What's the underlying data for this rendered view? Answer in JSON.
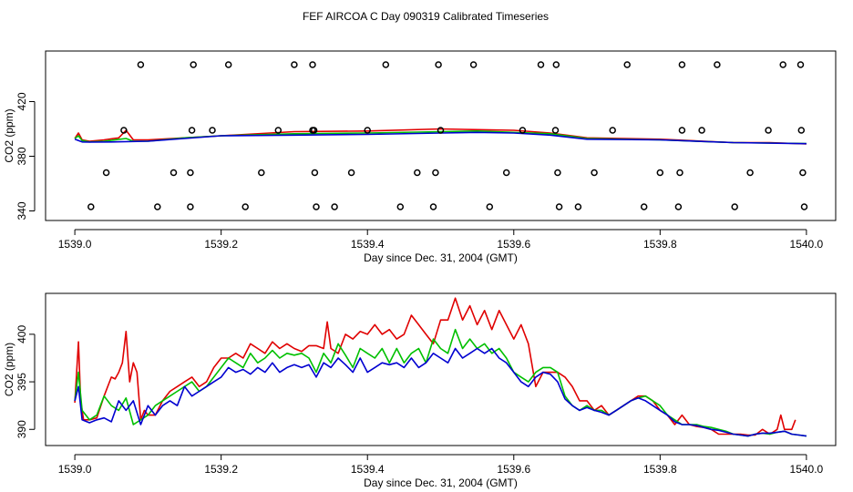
{
  "title": "FEF AIRCOA C  Day 090319  Calibrated Timeseries",
  "colors": {
    "red": "#e00000",
    "green": "#00c000",
    "blue": "#0000d0",
    "axis": "#000000"
  },
  "chart_data": [
    {
      "type": "line",
      "panel": "top",
      "xlabel": "Day since Dec. 31, 2004 (GMT)",
      "ylabel": "CO2 (ppm)",
      "xlim": [
        1538.96,
        1540.04
      ],
      "ylim": [
        333,
        457
      ],
      "xticks": [
        1539.0,
        1539.2,
        1539.4,
        1539.6,
        1539.8,
        1540.0
      ],
      "xtick_labels": [
        "1539.0",
        "1539.2",
        "1539.4",
        "1539.6",
        "1539.8",
        "1540.0"
      ],
      "yticks": [
        340,
        380,
        420
      ],
      "ytick_labels": [
        "340",
        "380",
        "420"
      ],
      "series": [
        {
          "name": "red",
          "color": "#e00000",
          "x": [
            1539.0,
            1539.005,
            1539.01,
            1539.02,
            1539.04,
            1539.06,
            1539.07,
            1539.08,
            1539.1,
            1539.15,
            1539.2,
            1539.3,
            1539.4,
            1539.5,
            1539.55,
            1539.6,
            1539.65,
            1539.7,
            1539.8,
            1539.9,
            1539.95,
            1540.0
          ],
          "y": [
            393,
            397,
            392,
            391,
            392,
            393.5,
            399,
            392,
            392,
            393.5,
            395,
            398,
            398.5,
            400,
            399.5,
            399,
            397,
            393.5,
            392.5,
            390,
            390,
            389
          ]
        },
        {
          "name": "green",
          "color": "#00c000",
          "x": [
            1539.0,
            1539.005,
            1539.01,
            1539.02,
            1539.04,
            1539.07,
            1539.08,
            1539.1,
            1539.15,
            1539.2,
            1539.3,
            1539.4,
            1539.5,
            1539.55,
            1539.6,
            1539.65,
            1539.7,
            1539.8,
            1539.9,
            1540.0
          ],
          "y": [
            393,
            395,
            391.5,
            390.5,
            391,
            393,
            391,
            391,
            393.5,
            395,
            396.5,
            397,
            398,
            398.5,
            397.5,
            396.5,
            393,
            392,
            390,
            389.3
          ]
        },
        {
          "name": "blue",
          "color": "#0000d0",
          "x": [
            1539.0,
            1539.01,
            1539.02,
            1539.05,
            1539.1,
            1539.15,
            1539.2,
            1539.3,
            1539.4,
            1539.5,
            1539.55,
            1539.6,
            1539.65,
            1539.7,
            1539.8,
            1539.9,
            1540.0
          ],
          "y": [
            392.5,
            390.5,
            390.3,
            390.5,
            391,
            393,
            395,
            395.5,
            396,
            397,
            397.5,
            397,
            395.5,
            392.5,
            392,
            390,
            389.2
          ]
        }
      ],
      "markers": [
        {
          "name": "circles",
          "color": "#000000",
          "x": [
            1539.09,
            1539.162,
            1539.21,
            1539.3,
            1539.325,
            1539.425,
            1539.497,
            1539.545,
            1539.637,
            1539.658,
            1539.755,
            1539.83,
            1539.878,
            1539.968,
            1539.992,
            1539.067,
            1539.16,
            1539.188,
            1539.278,
            1539.325,
            1539.327,
            1539.4,
            1539.5,
            1539.612,
            1539.657,
            1539.735,
            1539.83,
            1539.857,
            1539.948,
            1539.993,
            1539.043,
            1539.135,
            1539.158,
            1539.255,
            1539.328,
            1539.378,
            1539.468,
            1539.493,
            1539.59,
            1539.66,
            1539.71,
            1539.8,
            1539.827,
            1539.923,
            1539.995,
            1539.022,
            1539.113,
            1539.158,
            1539.233,
            1539.33,
            1539.355,
            1539.445,
            1539.49,
            1539.567,
            1539.662,
            1539.688,
            1539.778,
            1539.825,
            1539.902,
            1539.997
          ],
          "y": [
            447,
            447,
            447,
            447,
            447,
            447,
            447,
            447,
            447,
            447,
            447,
            447,
            447,
            447,
            447,
            399,
            399,
            399,
            399,
            399,
            399,
            399,
            399,
            399,
            399,
            399,
            399,
            399,
            399,
            399,
            368,
            368,
            368,
            368,
            368,
            368,
            368,
            368,
            368,
            368,
            368,
            368,
            368,
            368,
            368,
            343,
            343,
            343,
            343,
            343,
            343,
            343,
            343,
            343,
            343,
            343,
            343,
            343,
            343,
            343
          ]
        }
      ]
    },
    {
      "type": "line",
      "panel": "bottom",
      "xlabel": "Day since Dec. 31, 2004 (GMT)",
      "ylabel": "CO2 (ppm)",
      "xlim": [
        1538.96,
        1540.04
      ],
      "ylim": [
        388.3,
        404.3
      ],
      "xticks": [
        1539.0,
        1539.2,
        1539.4,
        1539.6,
        1539.8,
        1540.0
      ],
      "xtick_labels": [
        "1539.0",
        "1539.2",
        "1539.4",
        "1539.6",
        "1539.8",
        "1540.0"
      ],
      "yticks": [
        390,
        395,
        400
      ],
      "ytick_labels": [
        "390",
        "395",
        "400"
      ],
      "series": [
        {
          "name": "red",
          "color": "#e00000",
          "x": [
            1539.0,
            1539.005,
            1539.008,
            1539.012,
            1539.02,
            1539.03,
            1539.04,
            1539.05,
            1539.055,
            1539.06,
            1539.065,
            1539.07,
            1539.075,
            1539.08,
            1539.085,
            1539.09,
            1539.095,
            1539.1,
            1539.11,
            1539.12,
            1539.13,
            1539.14,
            1539.15,
            1539.16,
            1539.17,
            1539.18,
            1539.19,
            1539.2,
            1539.21,
            1539.22,
            1539.23,
            1539.24,
            1539.25,
            1539.26,
            1539.27,
            1539.28,
            1539.29,
            1539.3,
            1539.31,
            1539.32,
            1539.33,
            1539.34,
            1539.345,
            1539.35,
            1539.36,
            1539.37,
            1539.38,
            1539.39,
            1539.4,
            1539.41,
            1539.42,
            1539.43,
            1539.44,
            1539.45,
            1539.46,
            1539.47,
            1539.48,
            1539.49,
            1539.5,
            1539.51,
            1539.52,
            1539.53,
            1539.54,
            1539.55,
            1539.56,
            1539.57,
            1539.58,
            1539.59,
            1539.6,
            1539.61,
            1539.62,
            1539.63,
            1539.64,
            1539.65,
            1539.66,
            1539.67,
            1539.68,
            1539.69,
            1539.7,
            1539.71,
            1539.72,
            1539.73,
            1539.74,
            1539.75,
            1539.76,
            1539.77,
            1539.78,
            1539.79,
            1539.8,
            1539.81,
            1539.82,
            1539.83,
            1539.84,
            1539.85,
            1539.86,
            1539.87,
            1539.88,
            1539.89,
            1539.9,
            1539.91,
            1539.92,
            1539.93,
            1539.94,
            1539.95,
            1539.96,
            1539.965,
            1539.97,
            1539.98,
            1539.985
          ],
          "y": [
            392.8,
            399.2,
            393,
            391,
            391,
            391.2,
            393.5,
            395.5,
            395.3,
            396,
            397,
            400.3,
            395,
            397,
            396,
            391,
            392,
            391.5,
            391.5,
            393,
            394,
            394.5,
            395,
            395.5,
            394.5,
            395,
            396.5,
            397.5,
            397.5,
            398,
            397.5,
            399,
            398.5,
            398,
            399.2,
            398.5,
            399,
            398.5,
            398.2,
            398.8,
            398.8,
            398.5,
            401.3,
            398.5,
            398,
            400,
            399.5,
            400.3,
            400,
            401,
            400,
            400.5,
            399.5,
            400,
            402,
            401,
            400,
            399,
            401.5,
            401.5,
            403.8,
            401.5,
            403,
            401,
            402.5,
            400.5,
            402.5,
            401,
            399.5,
            401,
            399,
            394.5,
            396,
            396,
            396,
            395.5,
            394.5,
            393,
            393,
            392,
            392.5,
            391.5,
            392,
            392.5,
            393,
            393.5,
            393.5,
            393,
            392,
            391.5,
            390.5,
            391.5,
            390.5,
            390.3,
            390.2,
            390,
            389.5,
            389.5,
            389.5,
            389.5,
            389.4,
            389.4,
            390,
            389.5,
            390,
            391.5,
            390,
            390,
            391
          ]
        },
        {
          "name": "green",
          "color": "#00c000",
          "x": [
            1539.0,
            1539.005,
            1539.01,
            1539.02,
            1539.03,
            1539.04,
            1539.05,
            1539.06,
            1539.07,
            1539.08,
            1539.09,
            1539.1,
            1539.11,
            1539.12,
            1539.13,
            1539.14,
            1539.15,
            1539.16,
            1539.17,
            1539.18,
            1539.19,
            1539.2,
            1539.21,
            1539.22,
            1539.23,
            1539.24,
            1539.25,
            1539.26,
            1539.27,
            1539.28,
            1539.29,
            1539.3,
            1539.31,
            1539.32,
            1539.33,
            1539.34,
            1539.35,
            1539.36,
            1539.37,
            1539.38,
            1539.39,
            1539.4,
            1539.41,
            1539.42,
            1539.43,
            1539.44,
            1539.45,
            1539.46,
            1539.47,
            1539.48,
            1539.49,
            1539.5,
            1539.51,
            1539.52,
            1539.53,
            1539.54,
            1539.55,
            1539.56,
            1539.57,
            1539.58,
            1539.59,
            1539.6,
            1539.61,
            1539.62,
            1539.63,
            1539.64,
            1539.65,
            1539.66,
            1539.67,
            1539.68,
            1539.69,
            1539.7,
            1539.71,
            1539.72,
            1539.73,
            1539.74,
            1539.75,
            1539.76,
            1539.77,
            1539.78,
            1539.79,
            1539.8,
            1539.81,
            1539.82,
            1539.83,
            1539.84,
            1539.85,
            1539.86,
            1539.87,
            1539.88,
            1539.89,
            1539.9,
            1539.91,
            1539.92,
            1539.93,
            1539.94,
            1539.95,
            1539.96,
            1539.97,
            1539.98,
            1539.99,
            1540.0
          ],
          "y": [
            393,
            396,
            392,
            391,
            391.5,
            393.5,
            392.5,
            392,
            393.3,
            390.5,
            391,
            391.5,
            392.5,
            393,
            393.5,
            394,
            394.5,
            395,
            394,
            394.5,
            395.5,
            396.5,
            397.5,
            397,
            396.5,
            398,
            397,
            397.5,
            398.3,
            397.5,
            398,
            397.8,
            398,
            397.5,
            396,
            398,
            397,
            399,
            397.8,
            396.5,
            398.5,
            398,
            397.5,
            398.5,
            397,
            398.5,
            397,
            398,
            398.5,
            397,
            399.5,
            398.5,
            398,
            400.5,
            398.5,
            399.5,
            398.5,
            399,
            398,
            398.5,
            397.5,
            396,
            395.5,
            395,
            396,
            396.5,
            396.5,
            396,
            393.5,
            392.5,
            392,
            392.5,
            392,
            392,
            391.5,
            392,
            392.5,
            393,
            393.3,
            393.5,
            393,
            392.5,
            391.5,
            391,
            390.5,
            390.5,
            390.5,
            390.3,
            390.2,
            390,
            389.8,
            389.5,
            389.4,
            389.3,
            389.5,
            389.6,
            389.5,
            389.7,
            389.8,
            389.5,
            389.4,
            389.3
          ]
        },
        {
          "name": "blue",
          "color": "#0000d0",
          "x": [
            1539.0,
            1539.005,
            1539.01,
            1539.02,
            1539.03,
            1539.04,
            1539.05,
            1539.06,
            1539.07,
            1539.08,
            1539.09,
            1539.1,
            1539.11,
            1539.12,
            1539.13,
            1539.14,
            1539.15,
            1539.16,
            1539.17,
            1539.18,
            1539.19,
            1539.2,
            1539.21,
            1539.22,
            1539.23,
            1539.24,
            1539.25,
            1539.26,
            1539.27,
            1539.28,
            1539.29,
            1539.3,
            1539.31,
            1539.32,
            1539.33,
            1539.34,
            1539.35,
            1539.36,
            1539.37,
            1539.38,
            1539.39,
            1539.4,
            1539.41,
            1539.42,
            1539.43,
            1539.44,
            1539.45,
            1539.46,
            1539.47,
            1539.48,
            1539.49,
            1539.5,
            1539.51,
            1539.52,
            1539.53,
            1539.54,
            1539.55,
            1539.56,
            1539.57,
            1539.58,
            1539.59,
            1539.6,
            1539.61,
            1539.62,
            1539.63,
            1539.64,
            1539.65,
            1539.66,
            1539.67,
            1539.68,
            1539.69,
            1539.7,
            1539.71,
            1539.72,
            1539.73,
            1539.74,
            1539.75,
            1539.76,
            1539.77,
            1539.78,
            1539.79,
            1539.8,
            1539.81,
            1539.82,
            1539.83,
            1539.84,
            1539.85,
            1539.86,
            1539.87,
            1539.88,
            1539.89,
            1539.9,
            1539.91,
            1539.92,
            1539.93,
            1539.94,
            1539.95,
            1539.96,
            1539.97,
            1539.98,
            1539.99,
            1540.0
          ],
          "y": [
            393,
            394.5,
            391,
            390.7,
            391,
            391.2,
            390.8,
            393,
            392,
            393,
            390.5,
            392.5,
            391.5,
            392.5,
            393,
            392.5,
            394.5,
            393.5,
            394,
            394.5,
            395,
            395.5,
            396.5,
            396,
            396.3,
            395.8,
            396.5,
            396,
            397,
            396,
            396.5,
            396.8,
            396.5,
            396.8,
            395.5,
            397,
            396.5,
            397.5,
            396.8,
            396,
            397.5,
            396,
            396.5,
            397,
            396.8,
            397,
            396.5,
            397.5,
            396.5,
            397,
            398,
            397.5,
            397,
            398.5,
            397.5,
            398,
            398.5,
            398,
            398.5,
            397.5,
            397,
            396,
            395,
            394.5,
            395.5,
            396,
            395.8,
            395,
            393.2,
            392.5,
            392,
            392.3,
            392,
            391.8,
            391.5,
            392,
            392.5,
            393,
            393.3,
            393,
            392.5,
            392,
            391.5,
            390.8,
            390.5,
            390.5,
            390.4,
            390.2,
            390,
            389.9,
            389.7,
            389.5,
            389.4,
            389.3,
            389.5,
            389.6,
            389.6,
            389.7,
            389.8,
            389.5,
            389.4,
            389.3
          ]
        }
      ]
    }
  ]
}
